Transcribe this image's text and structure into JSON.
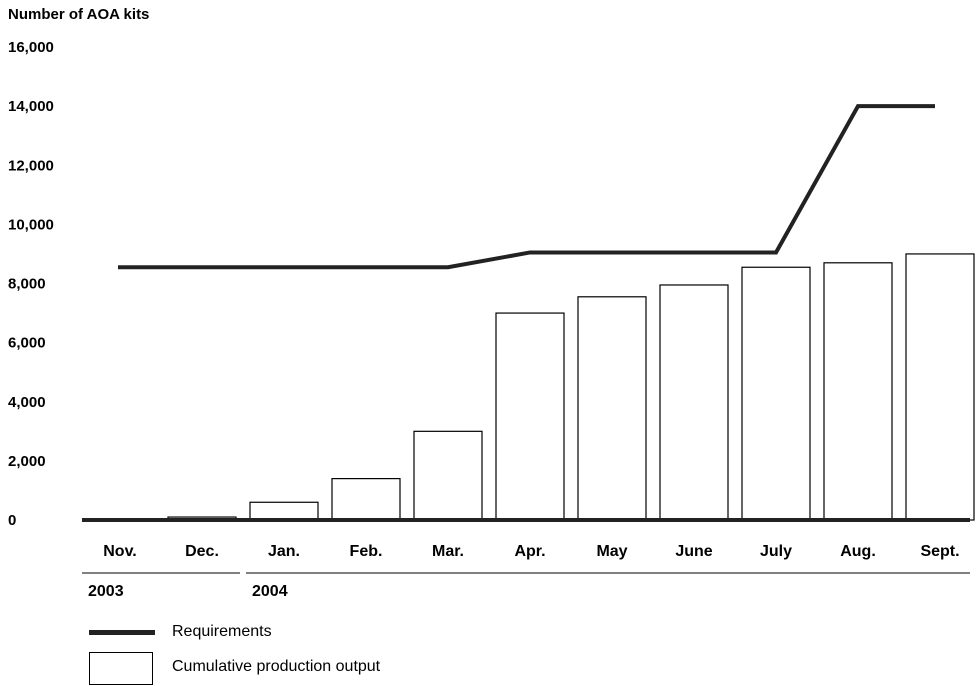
{
  "chart_data": {
    "type": "bar",
    "ylabel": "Number of AOA kits",
    "ylim": [
      0,
      16000
    ],
    "yticks": [
      "0",
      "2,000",
      "4,000",
      "6,000",
      "8,000",
      "10,000",
      "12,000",
      "14,000",
      "16,000"
    ],
    "ytick_values": [
      0,
      2000,
      4000,
      6000,
      8000,
      10000,
      12000,
      14000,
      16000
    ],
    "categories": [
      "Nov.",
      "Dec.",
      "Jan.",
      "Feb.",
      "Mar.",
      "Apr.",
      "May",
      "June",
      "July",
      "Aug.",
      "Sept."
    ],
    "years": [
      {
        "label": "2003",
        "start": 0,
        "end": 1
      },
      {
        "label": "2004",
        "start": 2,
        "end": 10
      }
    ],
    "series": [
      {
        "name": "Cumulative production output",
        "type": "bar",
        "values": [
          0,
          100,
          600,
          1400,
          3000,
          7000,
          7550,
          7950,
          8550,
          8700,
          9000
        ]
      },
      {
        "name": "Requirements",
        "type": "line",
        "values": [
          8550,
          8550,
          8550,
          8550,
          8550,
          9050,
          9050,
          9050,
          9050,
          14000,
          14000
        ]
      }
    ],
    "grid": false,
    "legend_position": "bottom-left"
  }
}
